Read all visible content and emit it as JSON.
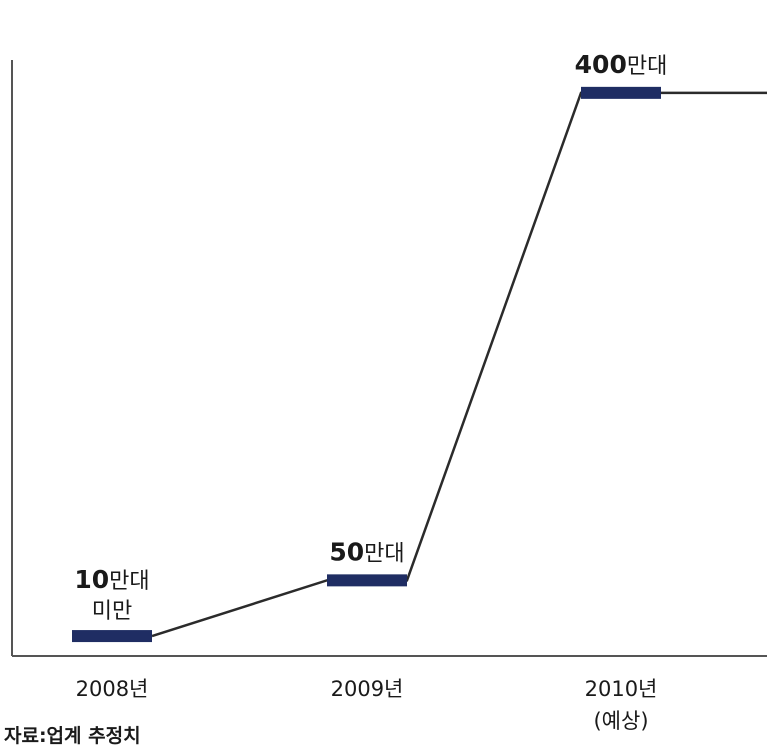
{
  "chart_data": {
    "type": "line",
    "title": "",
    "xlabel": "",
    "ylabel": "",
    "categories": [
      "2008년",
      "2009년",
      "2010년"
    ],
    "category_sublabels": [
      "",
      "",
      "(예상)"
    ],
    "values": [
      10,
      50,
      400
    ],
    "data_labels": [
      {
        "number": "10",
        "unit": "만대",
        "suffix": "미만"
      },
      {
        "number": "50",
        "unit": "만대",
        "suffix": ""
      },
      {
        "number": "400",
        "unit": "만대",
        "suffix": ""
      }
    ],
    "ylim": [
      0,
      420
    ],
    "grid": false,
    "legend": "none",
    "colors": {
      "line": "#2b2b2b",
      "marker": "#1f2d63",
      "axis": "#555555"
    }
  },
  "source_note": "자료:업계 추정치"
}
